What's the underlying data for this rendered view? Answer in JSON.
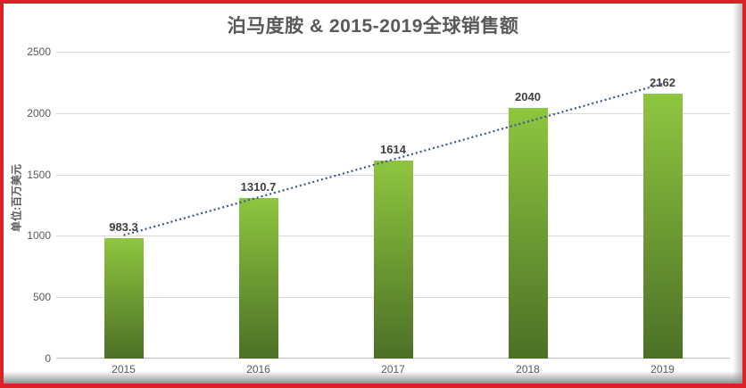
{
  "page": {
    "border_color": "#dd2127",
    "background": "#ffffff"
  },
  "chart_data": {
    "type": "bar",
    "title": "泊马度胺 & 2015-2019全球销售额",
    "ylabel": "单位:百万美元",
    "xlabel": "",
    "categories": [
      "2015",
      "2016",
      "2017",
      "2018",
      "2019"
    ],
    "values": [
      983.3,
      1310.7,
      1614,
      2040,
      2162
    ],
    "data_labels": [
      "983.3",
      "1310.7",
      "1614",
      "2040",
      "2162"
    ],
    "ylim": [
      0,
      2500
    ],
    "yticks": [
      "0",
      "500",
      "1000",
      "1500",
      "2000",
      "2500"
    ],
    "grid": true,
    "legend": "none",
    "bar_color_top": "#8ec63f",
    "bar_color_bottom": "#4c7026",
    "gridline_color": "#d9d9d9",
    "text_color": "#595959",
    "label_color": "#404040",
    "trendline": {
      "type": "linear",
      "style": "dotted",
      "color": "#3a5693",
      "start_value": 1005,
      "end_value": 2239
    }
  }
}
